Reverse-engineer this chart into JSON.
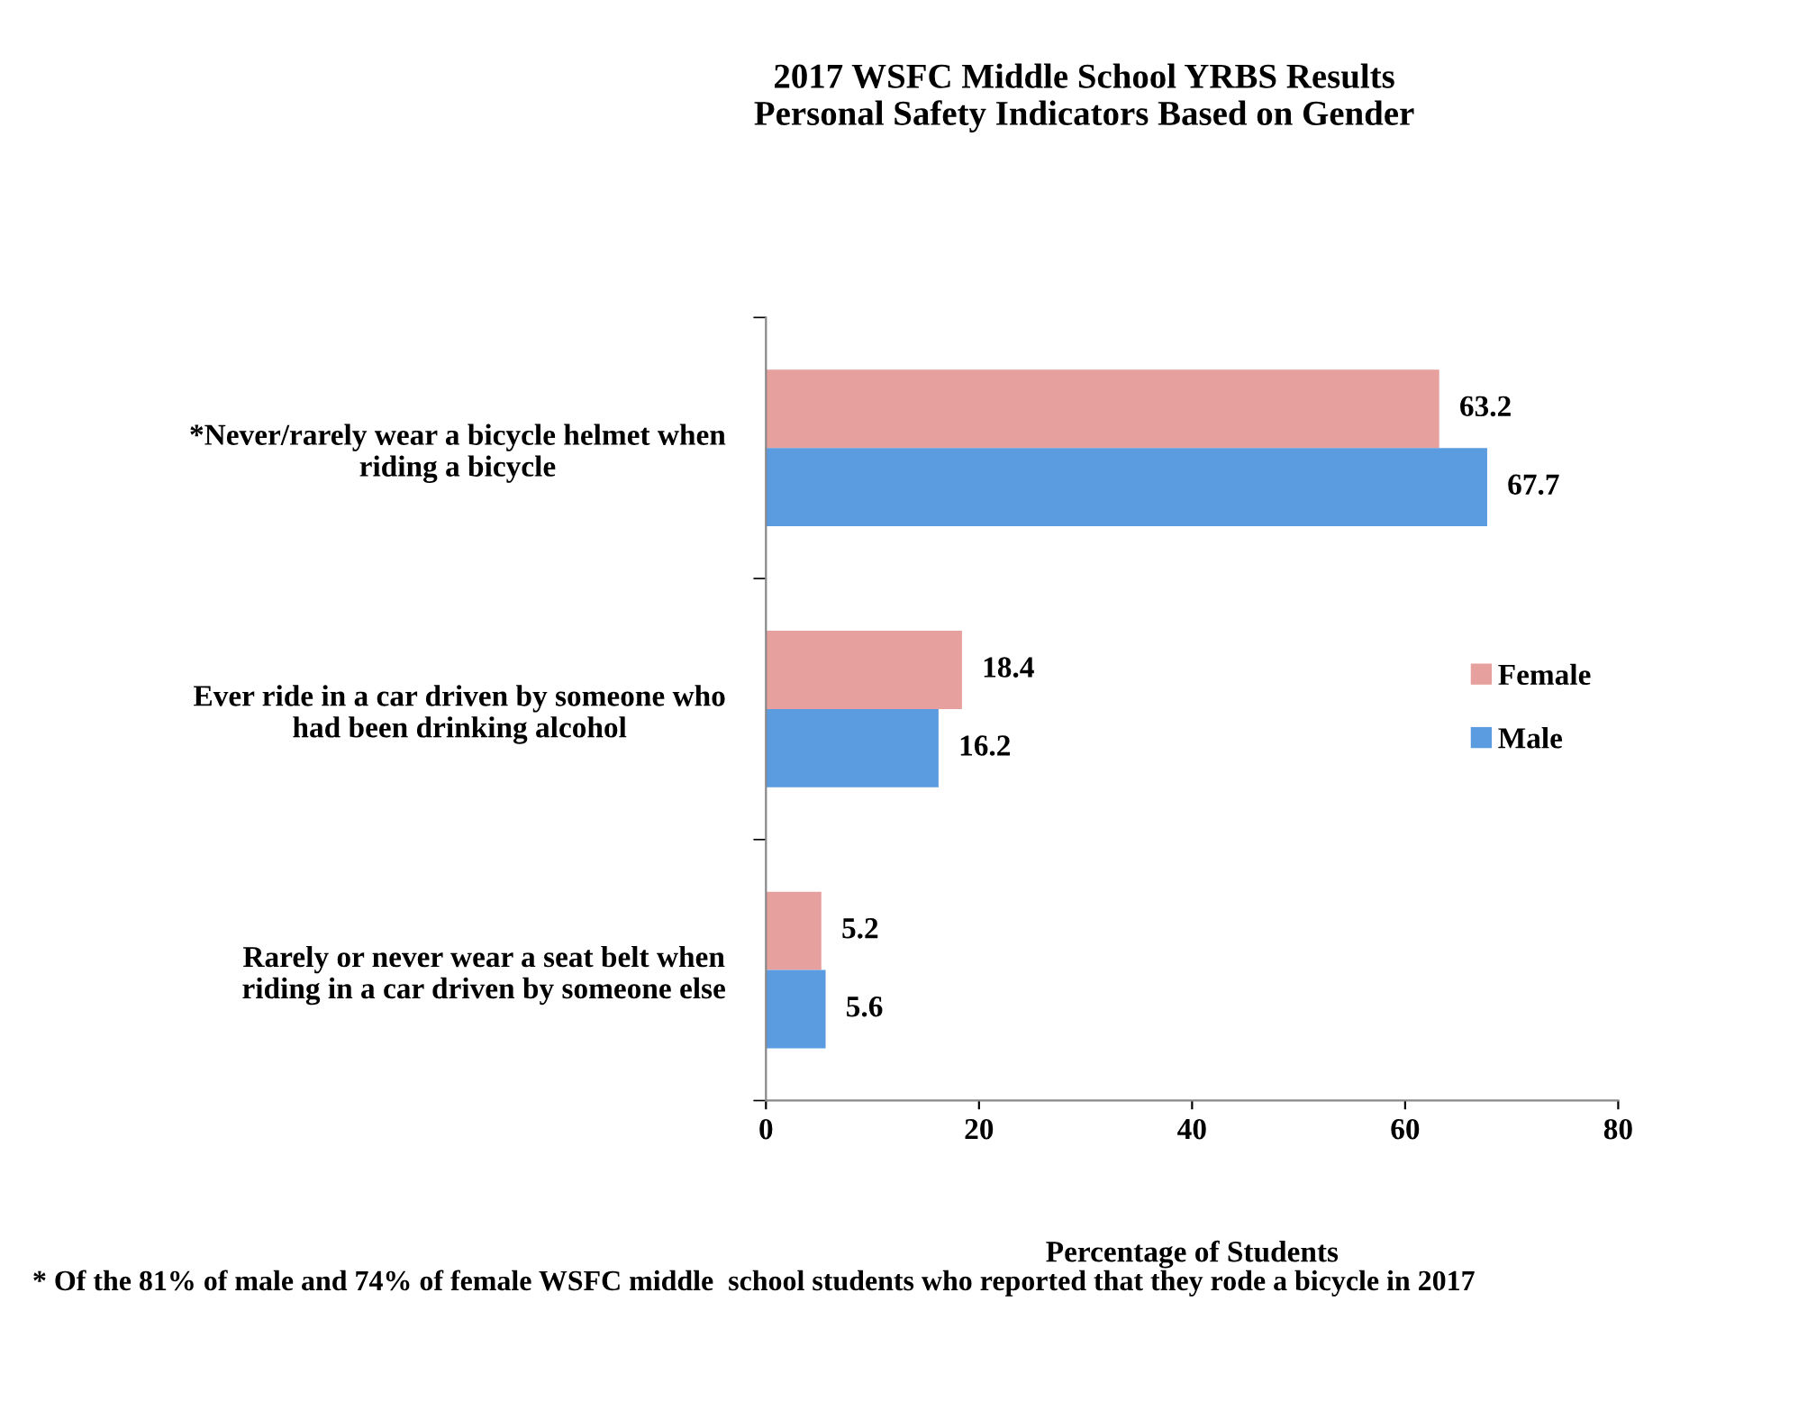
{
  "chart_data": {
    "type": "bar",
    "orientation": "horizontal",
    "title": "2017 WSFC Middle School YRBS Results\nPersonal Safety Indicators Based on Gender",
    "xlabel": "Percentage of Students",
    "categories": [
      "*Never/rarely wear a bicycle helmet when riding a bicycle",
      "Ever ride in a car driven by someone who had been drinking alcohol",
      "Rarely or never wear a seat belt when riding in a car driven by someone else"
    ],
    "series": [
      {
        "name": "Female",
        "color": "#e6a09e",
        "values": [
          63.2,
          18.4,
          5.2
        ]
      },
      {
        "name": "Male",
        "color": "#5b9be0",
        "values": [
          67.7,
          16.2,
          5.6
        ]
      }
    ],
    "xlim": [
      0,
      80
    ],
    "xticks": [
      0,
      20,
      40,
      60,
      80
    ],
    "data_labels": true,
    "legend": "right",
    "grid": false,
    "annotations": [
      "* Of the 81% of male and 74% of female WSFC middle  school students who reported that they rode a bicycle in 2017"
    ]
  }
}
